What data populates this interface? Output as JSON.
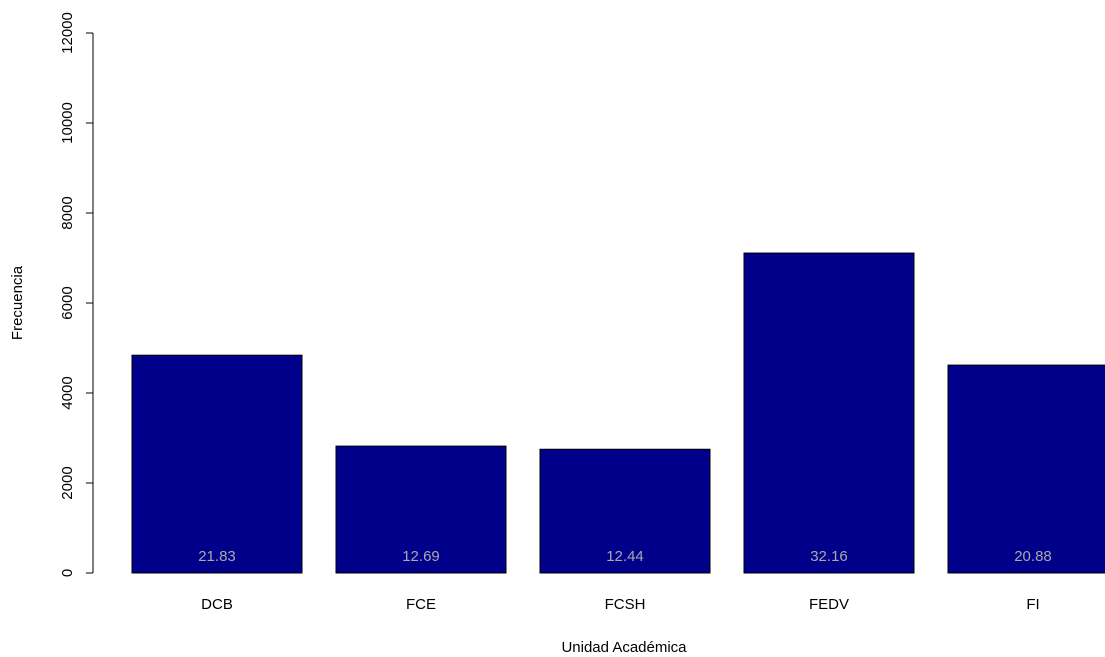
{
  "chart_data": {
    "type": "bar",
    "x_label": "Unidad Académica",
    "y_label": "Frecuencia",
    "categories": [
      "DCB",
      "FCE",
      "FCSH",
      "FEDV",
      "FI"
    ],
    "values": [
      4840,
      2820,
      2750,
      7110,
      4620
    ],
    "percent_labels": [
      21.83,
      12.69,
      12.44,
      32.16,
      20.88
    ],
    "color": "#00008b",
    "ylim": [
      0,
      12000
    ],
    "yticks": [
      0,
      2000,
      4000,
      6000,
      8000,
      10000,
      12000
    ]
  }
}
